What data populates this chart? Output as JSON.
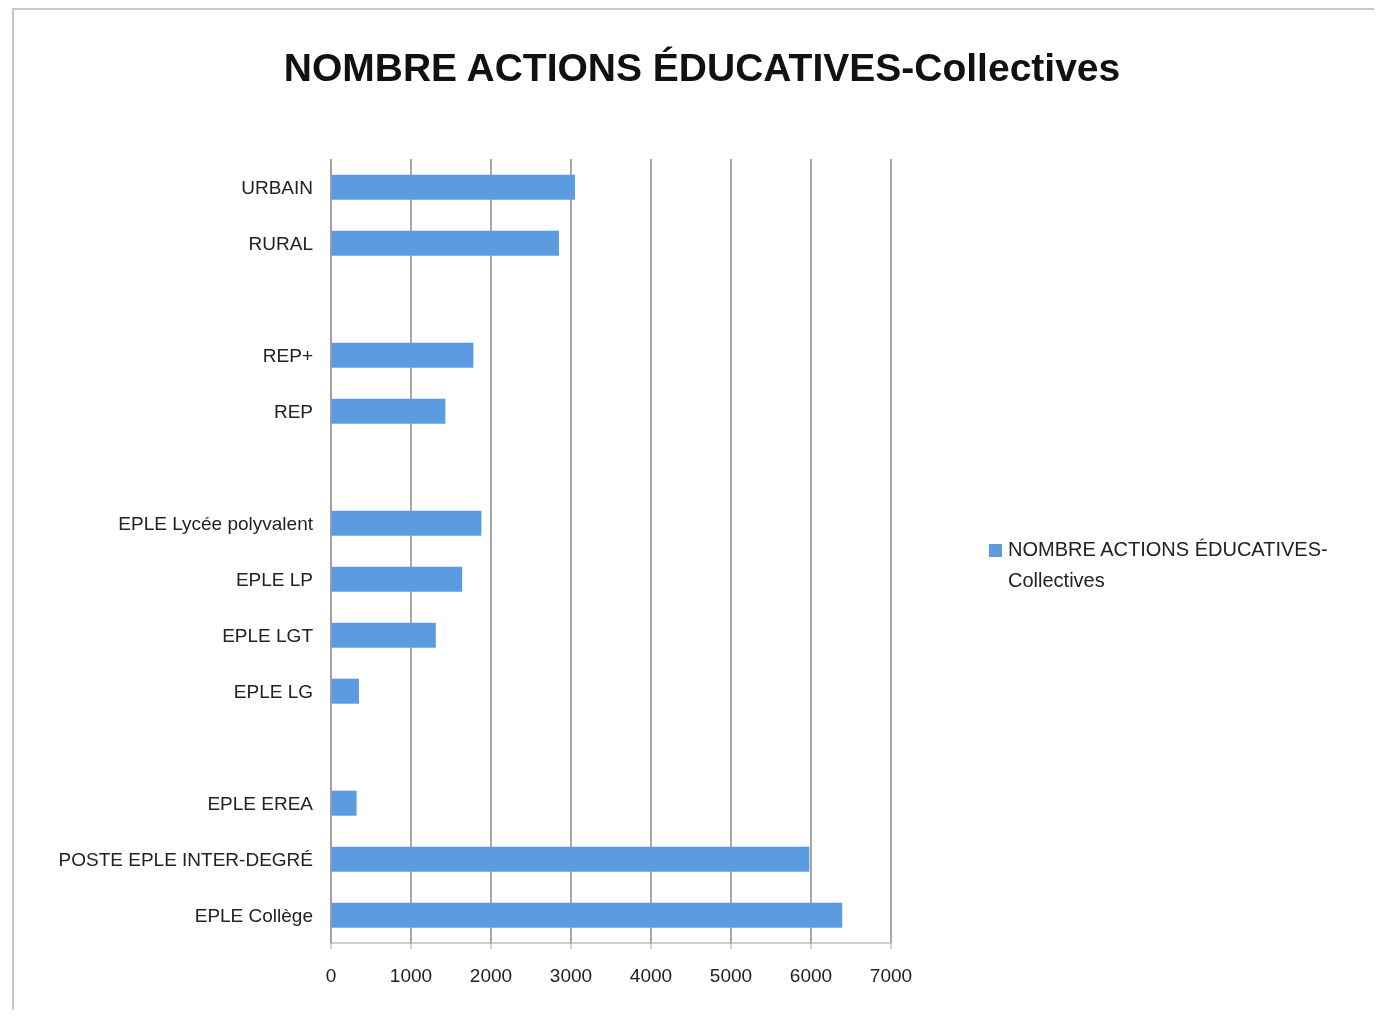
{
  "chart_data": {
    "type": "bar",
    "orientation": "horizontal",
    "title": "NOMBRE ACTIONS ÉDUCATIVES-Collectives",
    "categories": [
      "URBAIN",
      "RURAL",
      null,
      "REP+",
      "REP",
      null,
      "EPLE Lycée polyvalent",
      "EPLE LP",
      "EPLE LGT",
      "EPLE LG",
      null,
      "EPLE EREA",
      "POSTE EPLE INTER-DEGRÉ",
      "EPLE Collège"
    ],
    "series": [
      {
        "name": "NOMBRE ACTIONS ÉDUCATIVES-Collectives",
        "color": "#5b9be0",
        "values": [
          3050,
          2850,
          null,
          1780,
          1430,
          null,
          1880,
          1640,
          1310,
          350,
          null,
          320,
          5980,
          6390
        ]
      }
    ],
    "xlim": [
      0,
      7000
    ],
    "xticks": [
      0,
      1000,
      2000,
      3000,
      4000,
      5000,
      6000,
      7000
    ],
    "grid": "x",
    "legend": "right"
  }
}
